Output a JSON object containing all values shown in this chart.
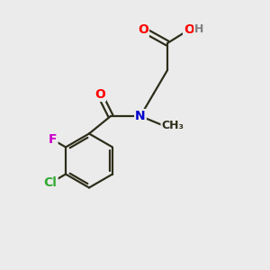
{
  "bg_color": "#ebebeb",
  "bond_color": "#2d2d1a",
  "bond_width": 1.6,
  "atom_colors": {
    "O": "#ff0000",
    "N": "#0000cc",
    "F": "#cc00cc",
    "Cl": "#33aa33",
    "H": "#808080",
    "C": "#2d2d1a"
  },
  "font_size_atom": 10,
  "font_size_h": 9
}
